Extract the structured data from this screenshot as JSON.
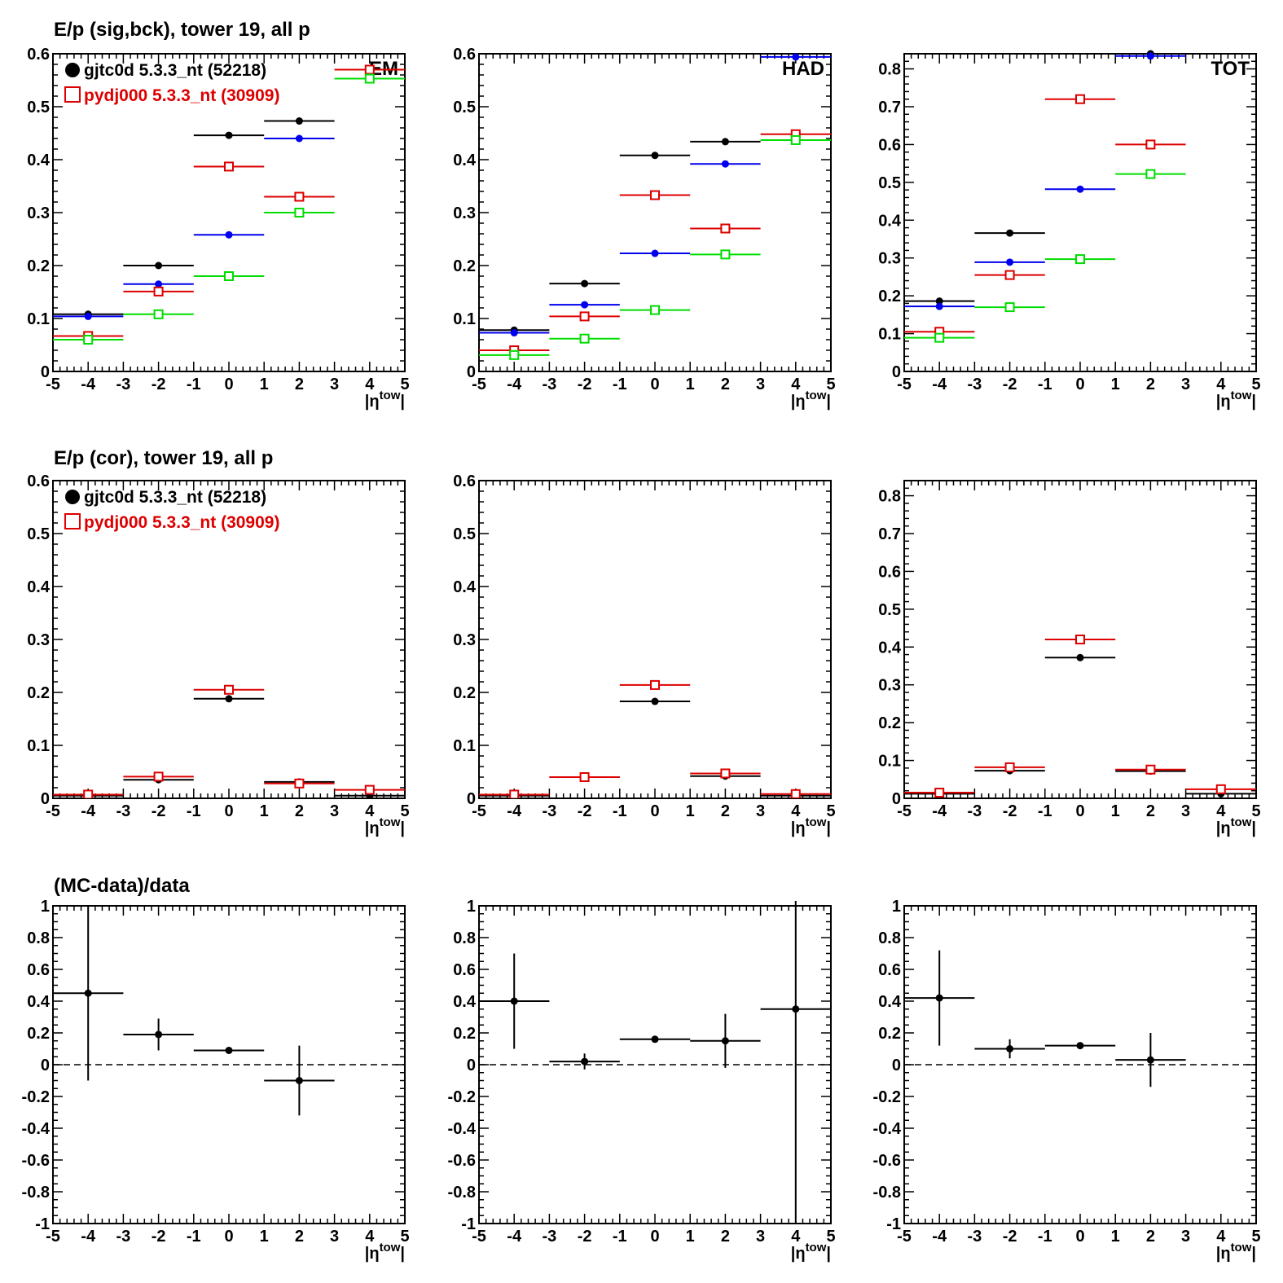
{
  "row_titles": [
    "E/p (sig,bck), tower 19, all p",
    "E/p (cor), tower 19, all p",
    "(MC-data)/data"
  ],
  "x_axis_label": "|η",
  "x_axis_label_sup": "tow",
  "x_axis_label_end": "|",
  "legend": {
    "entries": [
      {
        "label": "gjtc0d 5.3.3_nt (52218)",
        "color": "#000000",
        "marker": "filled-circle"
      },
      {
        "label": "pydj000 5.3.3_nt (30909)",
        "color": "#dd0000",
        "marker": "open-square"
      }
    ]
  },
  "colors": {
    "black": "#000000",
    "red": "#dd0000",
    "blue": "#0000ee",
    "green": "#00dd00"
  },
  "chart_data": [
    {
      "type": "scatter",
      "row": 0,
      "col": 0,
      "panel_label": "EM",
      "xlim": [
        -5,
        5
      ],
      "ylim": [
        0,
        0.6
      ],
      "yticks": [
        "0",
        "0.1",
        "0.2",
        "0.3",
        "0.4",
        "0.5",
        "0.6"
      ],
      "xticks": [
        "-5",
        "-4",
        "-3",
        "-2",
        "-1",
        "0",
        "1",
        "2",
        "3",
        "4",
        "5"
      ],
      "legend": true,
      "series": [
        {
          "color": "black",
          "marker": "dot",
          "points": [
            [
              -4,
              0.108
            ],
            [
              -2,
              0.2
            ],
            [
              0,
              0.446
            ],
            [
              2,
              0.473
            ]
          ]
        },
        {
          "color": "blue",
          "marker": "dot",
          "points": [
            [
              -4,
              0.104
            ],
            [
              -2,
              0.165
            ],
            [
              0,
              0.258
            ],
            [
              2,
              0.44
            ]
          ]
        },
        {
          "color": "red",
          "marker": "square",
          "points": [
            [
              -4,
              0.067
            ],
            [
              -2,
              0.151
            ],
            [
              0,
              0.387
            ],
            [
              2,
              0.33
            ],
            [
              4,
              0.57
            ]
          ]
        },
        {
          "color": "green",
          "marker": "square",
          "points": [
            [
              -4,
              0.06
            ],
            [
              -2,
              0.108
            ],
            [
              0,
              0.18
            ],
            [
              2,
              0.3
            ],
            [
              4,
              0.553
            ]
          ]
        }
      ]
    },
    {
      "type": "scatter",
      "row": 0,
      "col": 1,
      "panel_label": "HAD",
      "xlim": [
        -5,
        5
      ],
      "ylim": [
        0,
        0.6
      ],
      "yticks": [
        "0",
        "0.1",
        "0.2",
        "0.3",
        "0.4",
        "0.5",
        "0.6"
      ],
      "xticks": [
        "-5",
        "-4",
        "-3",
        "-2",
        "-1",
        "0",
        "1",
        "2",
        "3",
        "4",
        "5"
      ],
      "series": [
        {
          "color": "black",
          "marker": "dot",
          "points": [
            [
              -4,
              0.078
            ],
            [
              -2,
              0.166
            ],
            [
              0,
              0.408
            ],
            [
              2,
              0.434
            ]
          ]
        },
        {
          "color": "blue",
          "marker": "dot",
          "points": [
            [
              -4,
              0.073
            ],
            [
              -2,
              0.126
            ],
            [
              0,
              0.223
            ],
            [
              2,
              0.392
            ],
            [
              4,
              0.594
            ]
          ]
        },
        {
          "color": "red",
          "marker": "square",
          "points": [
            [
              -4,
              0.04
            ],
            [
              -2,
              0.104
            ],
            [
              0,
              0.333
            ],
            [
              2,
              0.27
            ],
            [
              4,
              0.448
            ]
          ]
        },
        {
          "color": "green",
          "marker": "square",
          "points": [
            [
              -4,
              0.031
            ],
            [
              -2,
              0.062
            ],
            [
              0,
              0.116
            ],
            [
              2,
              0.221
            ],
            [
              4,
              0.437
            ]
          ]
        }
      ]
    },
    {
      "type": "scatter",
      "row": 0,
      "col": 2,
      "panel_label": "TOT",
      "xlim": [
        -5,
        5
      ],
      "ylim": [
        0,
        0.84
      ],
      "yticks": [
        "0",
        "0.1",
        "0.2",
        "0.3",
        "0.4",
        "0.5",
        "0.6",
        "0.7",
        "0.8"
      ],
      "xticks": [
        "-5",
        "-4",
        "-3",
        "-2",
        "-1",
        "0",
        "1",
        "2",
        "3",
        "4",
        "5"
      ],
      "series": [
        {
          "color": "black",
          "marker": "dot",
          "points": [
            [
              -4,
              0.186
            ],
            [
              -2,
              0.366
            ],
            [
              2,
              0.84
            ]
          ]
        },
        {
          "color": "blue",
          "marker": "dot",
          "points": [
            [
              -4,
              0.172
            ],
            [
              -2,
              0.289
            ],
            [
              0,
              0.482
            ],
            [
              2,
              0.834
            ]
          ]
        },
        {
          "color": "red",
          "marker": "square",
          "points": [
            [
              -4,
              0.105
            ],
            [
              -2,
              0.255
            ],
            [
              0,
              0.72
            ],
            [
              2,
              0.6
            ]
          ]
        },
        {
          "color": "green",
          "marker": "square",
          "points": [
            [
              -4,
              0.089
            ],
            [
              -2,
              0.17
            ],
            [
              0,
              0.297
            ],
            [
              2,
              0.522
            ]
          ]
        }
      ]
    },
    {
      "type": "scatter",
      "row": 1,
      "col": 0,
      "panel_label": "",
      "xlim": [
        -5,
        5
      ],
      "ylim": [
        0,
        0.6
      ],
      "yticks": [
        "0",
        "0.1",
        "0.2",
        "0.3",
        "0.4",
        "0.5",
        "0.6"
      ],
      "xticks": [
        "-5",
        "-4",
        "-3",
        "-2",
        "-1",
        "0",
        "1",
        "2",
        "3",
        "4",
        "5"
      ],
      "legend": true,
      "series": [
        {
          "color": "black",
          "marker": "dot",
          "points": [
            [
              -4,
              0.005
            ],
            [
              -2,
              0.035
            ],
            [
              0,
              0.188
            ],
            [
              2,
              0.031
            ],
            [
              4,
              0.005
            ]
          ]
        },
        {
          "color": "red",
          "marker": "square",
          "points": [
            [
              -4,
              0.007
            ],
            [
              -2,
              0.041
            ],
            [
              0,
              0.205
            ],
            [
              2,
              0.028
            ],
            [
              4,
              0.016
            ]
          ]
        }
      ]
    },
    {
      "type": "scatter",
      "row": 1,
      "col": 1,
      "panel_label": "",
      "xlim": [
        -5,
        5
      ],
      "ylim": [
        0,
        0.6
      ],
      "yticks": [
        "0",
        "0.1",
        "0.2",
        "0.3",
        "0.4",
        "0.5",
        "0.6"
      ],
      "xticks": [
        "-5",
        "-4",
        "-3",
        "-2",
        "-1",
        "0",
        "1",
        "2",
        "3",
        "4",
        "5"
      ],
      "series": [
        {
          "color": "black",
          "marker": "dot",
          "points": [
            [
              -4,
              0.005
            ],
            [
              -2,
              0.04
            ],
            [
              0,
              0.183
            ],
            [
              2,
              0.042
            ],
            [
              4,
              0.005
            ]
          ]
        },
        {
          "color": "red",
          "marker": "square",
          "points": [
            [
              -4,
              0.007
            ],
            [
              -2,
              0.04
            ],
            [
              0,
              0.214
            ],
            [
              2,
              0.047
            ],
            [
              4,
              0.008
            ]
          ]
        }
      ]
    },
    {
      "type": "scatter",
      "row": 1,
      "col": 2,
      "panel_label": "",
      "xlim": [
        -5,
        5
      ],
      "ylim": [
        0,
        0.84
      ],
      "yticks": [
        "0",
        "0.1",
        "0.2",
        "0.3",
        "0.4",
        "0.5",
        "0.6",
        "0.7",
        "0.8"
      ],
      "xticks": [
        "-5",
        "-4",
        "-3",
        "-2",
        "-1",
        "0",
        "1",
        "2",
        "3",
        "4",
        "5"
      ],
      "series": [
        {
          "color": "black",
          "marker": "dot",
          "points": [
            [
              -4,
              0.012
            ],
            [
              -2,
              0.073
            ],
            [
              0,
              0.372
            ],
            [
              2,
              0.072
            ],
            [
              4,
              0.012
            ]
          ]
        },
        {
          "color": "red",
          "marker": "square",
          "points": [
            [
              -4,
              0.015
            ],
            [
              -2,
              0.082
            ],
            [
              0,
              0.42
            ],
            [
              2,
              0.076
            ],
            [
              4,
              0.024
            ]
          ]
        }
      ]
    },
    {
      "type": "scatter",
      "row": 2,
      "col": 0,
      "panel_label": "",
      "xlim": [
        -5,
        5
      ],
      "ylim": [
        -1,
        1
      ],
      "dashed_zero": true,
      "yticks": [
        "-1",
        "-0.8",
        "-0.6",
        "-0.4",
        "-0.2",
        "0",
        "0.2",
        "0.4",
        "0.6",
        "0.8",
        "1"
      ],
      "xticks": [
        "-5",
        "-4",
        "-3",
        "-2",
        "-1",
        "0",
        "1",
        "2",
        "3",
        "4",
        "5"
      ],
      "series": [
        {
          "color": "black",
          "marker": "dot",
          "points": [
            [
              -4,
              0.45
            ],
            [
              -2,
              0.19
            ],
            [
              0,
              0.09
            ],
            [
              2,
              -0.1
            ]
          ],
          "errors": [
            0.55,
            0.1,
            0.01,
            0.22
          ]
        }
      ]
    },
    {
      "type": "scatter",
      "row": 2,
      "col": 1,
      "panel_label": "",
      "xlim": [
        -5,
        5
      ],
      "ylim": [
        -1,
        1
      ],
      "dashed_zero": true,
      "yticks": [
        "-1",
        "-0.8",
        "-0.6",
        "-0.4",
        "-0.2",
        "0",
        "0.2",
        "0.4",
        "0.6",
        "0.8",
        "1"
      ],
      "xticks": [
        "-5",
        "-4",
        "-3",
        "-2",
        "-1",
        "0",
        "1",
        "2",
        "3",
        "4",
        "5"
      ],
      "series": [
        {
          "color": "black",
          "marker": "dot",
          "points": [
            [
              -4,
              0.4
            ],
            [
              -2,
              0.02
            ],
            [
              0,
              0.16
            ],
            [
              2,
              0.15
            ],
            [
              4,
              0.35
            ]
          ],
          "errors": [
            0.3,
            0.05,
            0.01,
            0.17,
            1.35
          ]
        }
      ]
    },
    {
      "type": "scatter",
      "row": 2,
      "col": 2,
      "panel_label": "",
      "xlim": [
        -5,
        5
      ],
      "ylim": [
        -1,
        1
      ],
      "dashed_zero": true,
      "yticks": [
        "-1",
        "-0.8",
        "-0.6",
        "-0.4",
        "-0.2",
        "0",
        "0.2",
        "0.4",
        "0.6",
        "0.8",
        "1"
      ],
      "xticks": [
        "-5",
        "-4",
        "-3",
        "-2",
        "-1",
        "0",
        "1",
        "2",
        "3",
        "4",
        "5"
      ],
      "series": [
        {
          "color": "black",
          "marker": "dot",
          "points": [
            [
              -4,
              0.42
            ],
            [
              -2,
              0.1
            ],
            [
              0,
              0.12
            ],
            [
              2,
              0.03
            ]
          ],
          "errors": [
            0.3,
            0.06,
            0.01,
            0.17
          ]
        }
      ]
    }
  ]
}
